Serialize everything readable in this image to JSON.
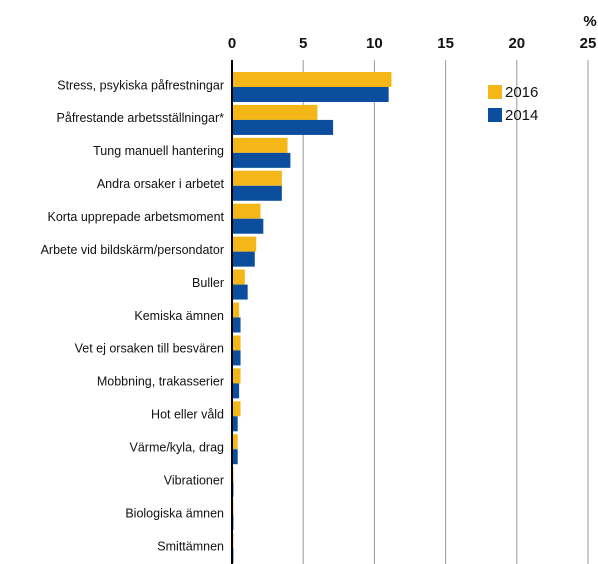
{
  "chart_data": {
    "type": "bar",
    "orientation": "horizontal",
    "unit": "%",
    "categories": [
      "Stress, psykiska påfrestningar",
      "Påfrestande arbetsställningar*",
      "Tung manuell hantering",
      "Andra orsaker i arbetet",
      "Korta upprepade arbetsmoment",
      "Arbete vid bildskärm/persondator",
      "Buller",
      "Kemiska ämnen",
      "Vet ej orsaken till besvären",
      "Mobbning, trakasserier",
      "Hot eller våld",
      "Värme/kyla, drag",
      "Vibrationer",
      "Biologiska ämnen",
      "Smittämnen"
    ],
    "series": [
      {
        "name": "2016",
        "color": "#f5b617",
        "values": [
          11.2,
          6.0,
          3.9,
          3.5,
          2.0,
          1.7,
          0.9,
          0.5,
          0.6,
          0.6,
          0.6,
          0.4,
          0.1,
          0.1,
          0.1
        ]
      },
      {
        "name": "2014",
        "color": "#0b4e9e",
        "values": [
          11.0,
          7.1,
          4.1,
          3.5,
          2.2,
          1.6,
          1.1,
          0.6,
          0.6,
          0.5,
          0.4,
          0.4,
          0.1,
          0.1,
          0.1
        ]
      }
    ],
    "xlim": [
      0,
      25
    ],
    "xticks": [
      0,
      5,
      10,
      15,
      20,
      25
    ],
    "grid": true
  }
}
